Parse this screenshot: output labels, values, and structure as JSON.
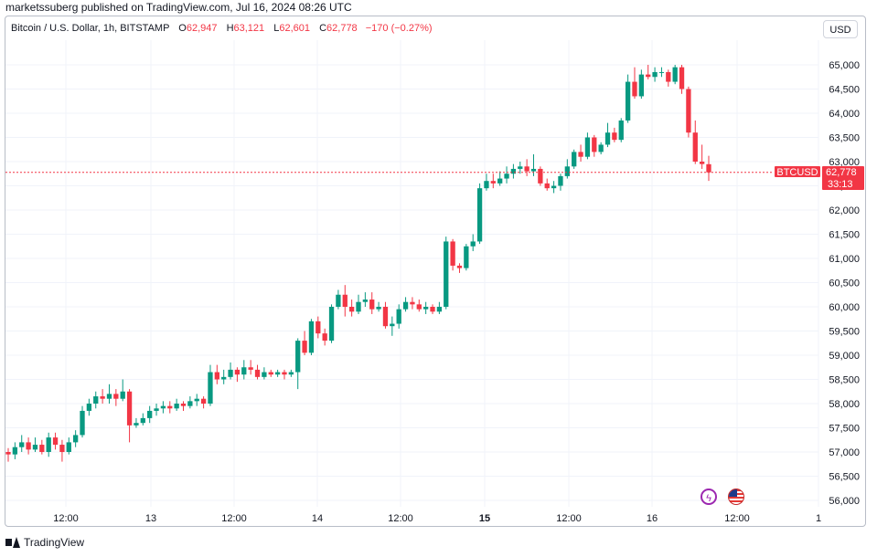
{
  "header": {
    "published_text": "marketssuberg published on TradingView.com, Jul 16, 2024 08:26 UTC"
  },
  "legend": {
    "symbol": "Bitcoin / U.S. Dollar, 1h, BITSTAMP",
    "open_label": "O",
    "open_value": "62,947",
    "high_label": "H",
    "high_value": "63,121",
    "low_label": "L",
    "low_value": "62,601",
    "close_label": "C",
    "close_value": "62,778",
    "change": "−170 (−0.27%)"
  },
  "currency_button": "USD",
  "price_tag": {
    "symbol": "BTCUSD",
    "price": "62,778",
    "countdown": "33:13"
  },
  "footer": {
    "brand": "TradingView"
  },
  "colors": {
    "up": "#089981",
    "down": "#f23645",
    "grid": "#f0f3fa",
    "price_line": "#f23645"
  },
  "chart_data": {
    "type": "candlestick",
    "interval": "1h",
    "y_ticks": [
      "56,000",
      "56,500",
      "57,000",
      "57,500",
      "58,000",
      "58,500",
      "59,000",
      "59,500",
      "60,000",
      "60,500",
      "61,000",
      "61,500",
      "62,000",
      "62,500",
      "63,000",
      "63,500",
      "64,000",
      "64,500",
      "65,000"
    ],
    "x_ticks": [
      "12:00",
      "13",
      "12:00",
      "14",
      "12:00",
      "15",
      "12:00",
      "16",
      "12:00",
      "1"
    ],
    "ylim": [
      56000,
      65000
    ],
    "last_price": 62778,
    "candles": [
      [
        57000,
        56950,
        57080,
        56800
      ],
      [
        56950,
        57100,
        57200,
        56850
      ],
      [
        57100,
        57200,
        57350,
        57000
      ],
      [
        57200,
        57050,
        57300,
        56950
      ],
      [
        57050,
        57150,
        57300,
        57000
      ],
      [
        57150,
        57000,
        57250,
        56950
      ],
      [
        57000,
        57300,
        57400,
        56900
      ],
      [
        57300,
        57150,
        57400,
        57050
      ],
      [
        57150,
        57000,
        57250,
        56800
      ],
      [
        57000,
        57200,
        57300,
        56950
      ],
      [
        57200,
        57350,
        57450,
        57100
      ],
      [
        57350,
        57850,
        57950,
        57300
      ],
      [
        57850,
        58000,
        58100,
        57750
      ],
      [
        58000,
        58150,
        58250,
        57900
      ],
      [
        58150,
        58100,
        58300,
        58000
      ],
      [
        58100,
        58200,
        58400,
        58000
      ],
      [
        58200,
        58100,
        58300,
        57950
      ],
      [
        58100,
        58250,
        58500,
        58050
      ],
      [
        58250,
        57550,
        58300,
        57200
      ],
      [
        57550,
        57600,
        57700,
        57500
      ],
      [
        57600,
        57700,
        57800,
        57550
      ],
      [
        57700,
        57850,
        57950,
        57600
      ],
      [
        57850,
        57900,
        58000,
        57750
      ],
      [
        57900,
        57950,
        58050,
        57800
      ],
      [
        57950,
        57900,
        58050,
        57800
      ],
      [
        57900,
        58000,
        58100,
        57850
      ],
      [
        58000,
        57950,
        58050,
        57850
      ],
      [
        57950,
        58050,
        58150,
        57900
      ],
      [
        58050,
        58100,
        58200,
        57950
      ],
      [
        58100,
        58000,
        58150,
        57900
      ],
      [
        58000,
        58650,
        58800,
        57950
      ],
      [
        58650,
        58500,
        58800,
        58400
      ],
      [
        58500,
        58550,
        58700,
        58400
      ],
      [
        58550,
        58700,
        58850,
        58500
      ],
      [
        58700,
        58600,
        58750,
        58450
      ],
      [
        58600,
        58750,
        58900,
        58500
      ],
      [
        58750,
        58700,
        58900,
        58600
      ],
      [
        58700,
        58550,
        58800,
        58500
      ],
      [
        58550,
        58650,
        58750,
        58500
      ],
      [
        58650,
        58600,
        58700,
        58550
      ],
      [
        58600,
        58650,
        58700,
        58550
      ],
      [
        58650,
        58600,
        58700,
        58500
      ],
      [
        58600,
        58650,
        58700,
        58550
      ],
      [
        58650,
        59300,
        59350,
        58300
      ],
      [
        59300,
        59050,
        59500,
        59000
      ],
      [
        59050,
        59700,
        59750,
        59000
      ],
      [
        59700,
        59450,
        59800,
        59350
      ],
      [
        59450,
        59300,
        59550,
        59200
      ],
      [
        59300,
        60000,
        60050,
        59250
      ],
      [
        60000,
        60250,
        60350,
        59950
      ],
      [
        60250,
        60000,
        60450,
        59800
      ],
      [
        60000,
        59900,
        60150,
        59800
      ],
      [
        59900,
        60100,
        60250,
        59850
      ],
      [
        60100,
        60150,
        60300,
        60000
      ],
      [
        60150,
        59950,
        60300,
        59850
      ],
      [
        59950,
        60000,
        60100,
        59900
      ],
      [
        60000,
        59600,
        60100,
        59550
      ],
      [
        59600,
        59650,
        59800,
        59400
      ],
      [
        59650,
        59950,
        60050,
        59550
      ],
      [
        59950,
        60100,
        60200,
        59900
      ],
      [
        60100,
        60050,
        60200,
        59950
      ],
      [
        60050,
        59950,
        60150,
        59900
      ],
      [
        59950,
        60000,
        60100,
        59850
      ],
      [
        60000,
        59900,
        60050,
        59850
      ],
      [
        59900,
        60000,
        60100,
        59850
      ],
      [
        60000,
        61350,
        61450,
        59950
      ],
      [
        61350,
        60850,
        61400,
        60750
      ],
      [
        60850,
        60800,
        60900,
        60700
      ],
      [
        60800,
        61250,
        61300,
        60750
      ],
      [
        61250,
        61350,
        61500,
        61150
      ],
      [
        61350,
        62450,
        62550,
        61300
      ],
      [
        62450,
        62600,
        62750,
        62400
      ],
      [
        62600,
        62550,
        62750,
        62450
      ],
      [
        62550,
        62650,
        62800,
        62500
      ],
      [
        62650,
        62750,
        62900,
        62550
      ],
      [
        62750,
        62850,
        62950,
        62650
      ],
      [
        62850,
        62900,
        63000,
        62750
      ],
      [
        62900,
        62800,
        63050,
        62700
      ],
      [
        62800,
        62850,
        63150,
        62700
      ],
      [
        62850,
        62550,
        62900,
        62500
      ],
      [
        62550,
        62450,
        62650,
        62400
      ],
      [
        62450,
        62500,
        62600,
        62350
      ],
      [
        62500,
        62700,
        62750,
        62400
      ],
      [
        62700,
        62900,
        63050,
        62650
      ],
      [
        62900,
        63200,
        63250,
        62850
      ],
      [
        63200,
        63100,
        63350,
        63000
      ],
      [
        63100,
        63500,
        63600,
        63050
      ],
      [
        63500,
        63200,
        63550,
        63100
      ],
      [
        63200,
        63350,
        63400,
        63150
      ],
      [
        63350,
        63600,
        63800,
        63300
      ],
      [
        63600,
        63450,
        63700,
        63400
      ],
      [
        63450,
        63850,
        63900,
        63400
      ],
      [
        63850,
        64650,
        64800,
        63800
      ],
      [
        64650,
        64350,
        64950,
        64300
      ],
      [
        64350,
        64800,
        64900,
        64300
      ],
      [
        64800,
        64750,
        65000,
        64700
      ],
      [
        64750,
        64850,
        64950,
        64650
      ],
      [
        64850,
        64850,
        64950,
        64750
      ],
      [
        64850,
        64650,
        64900,
        64550
      ],
      [
        64650,
        64950,
        65000,
        64600
      ],
      [
        64950,
        64500,
        65000,
        64400
      ],
      [
        64500,
        63600,
        64550,
        63500
      ],
      [
        63600,
        63000,
        63850,
        62950
      ],
      [
        63000,
        62950,
        63350,
        62850
      ],
      [
        62947,
        62778,
        63121,
        62601
      ]
    ]
  }
}
